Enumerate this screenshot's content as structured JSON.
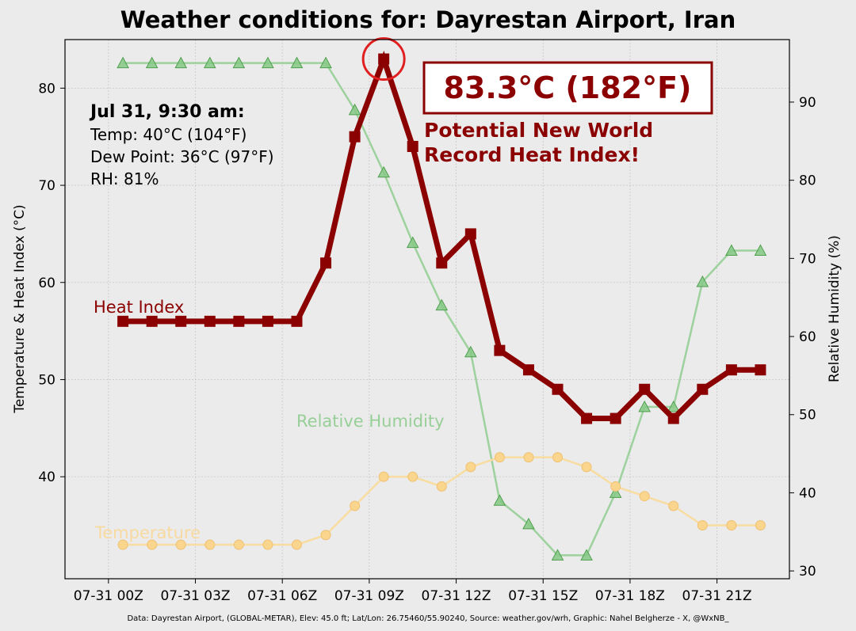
{
  "title": "Weather conditions for: Dayrestan Airport, Iran",
  "footer": "Data: Dayrestan Airport, (GLOBAL-METAR), Elev: 45.0 ft; Lat/Lon: 26.75460/55.90240, Source: weather.gov/wrh, Graphic: Nahel Belgherze - X, @WxNB_",
  "annotation": {
    "heading": "Jul 31, 9:30 am:",
    "temp": "Temp: 40°C (104°F)",
    "dew": "Dew Point: 36°C (97°F)",
    "rh": "RH: 81%",
    "record_value": "83.3°C (182°F)",
    "record_line1": "Potential New World",
    "record_line2": "Record Heat Index!"
  },
  "colors": {
    "heat_index": "#8b0000",
    "humidity": "#6ab86a",
    "temperature": "#f5c86a",
    "background": "#ebebeb"
  },
  "chart_data": {
    "type": "line",
    "x_ticks": [
      "07-31 00Z",
      "07-31 03Z",
      "07-31 06Z",
      "07-31 09Z",
      "07-31 12Z",
      "07-31 15Z",
      "07-31 18Z",
      "07-31 21Z"
    ],
    "x_hours": [
      0.5,
      1.5,
      2.5,
      3.5,
      4.5,
      5.5,
      6.5,
      7.5,
      8.5,
      9.5,
      10.5,
      11.5,
      12.5,
      13.5,
      14.5,
      15.5,
      16.5,
      17.5,
      18.5,
      19.5,
      20.5,
      21.5,
      22.5
    ],
    "xlim": [
      -1.5,
      23.5
    ],
    "ylabel": "Temperature & Heat Index (°C)",
    "ylim": [
      29.5,
      85
    ],
    "y_ticks": [
      40,
      50,
      60,
      70,
      80
    ],
    "y2label": "Relative Humidity (%)",
    "y2lim": [
      29,
      98
    ],
    "y2_ticks": [
      30,
      40,
      50,
      60,
      70,
      80,
      90
    ],
    "grid": true,
    "highlight": {
      "x": 9.5,
      "y": 83
    },
    "series": [
      {
        "name": "Heat Index",
        "axis": "left",
        "marker": "square",
        "values": [
          56,
          56,
          56,
          56,
          56,
          56,
          56,
          62,
          75,
          83,
          74,
          62,
          65,
          53,
          51,
          49,
          46,
          46,
          49,
          46,
          49,
          51,
          51
        ]
      },
      {
        "name": "Relative Humidity",
        "axis": "right",
        "marker": "triangle",
        "values": [
          95,
          95,
          95,
          95,
          95,
          95,
          95,
          95,
          89,
          81,
          72,
          64,
          58,
          39,
          36,
          32,
          32,
          40,
          51,
          51,
          67,
          71,
          71
        ]
      },
      {
        "name": "Temperature",
        "axis": "left",
        "marker": "circle",
        "values": [
          33,
          33,
          33,
          33,
          33,
          33,
          33,
          34,
          37,
          40,
          40,
          39,
          41,
          42,
          42,
          42,
          41,
          39,
          38,
          37,
          35,
          35,
          35
        ]
      }
    ]
  }
}
